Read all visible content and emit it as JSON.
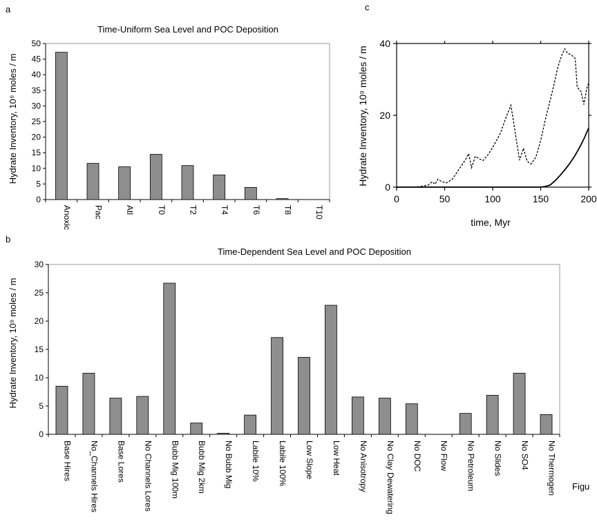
{
  "panel_letters": [
    "a",
    "b",
    "c"
  ],
  "footer_text": "Figu",
  "colors": {
    "bar_fill": "#8e8e8e",
    "bar_edge": "#000000",
    "axis": "#000000",
    "background": "#ffffff"
  },
  "chart_data": [
    {
      "panel": "a",
      "type": "bar",
      "title": "Time-Uniform Sea Level and POC Deposition",
      "xlabel": "",
      "ylabel": "Hydrate Inventory, 10⁹ moles / m",
      "ylim": [
        0,
        50
      ],
      "yticks": [
        0,
        5,
        10,
        15,
        20,
        25,
        30,
        35,
        40,
        45,
        50
      ],
      "grid": false,
      "categories": [
        "Anoxic",
        "Pac",
        "Atl",
        "T0",
        "T2",
        "T4",
        "T6",
        "T8",
        "T10"
      ],
      "values": [
        47.2,
        11.6,
        10.5,
        14.5,
        10.9,
        7.9,
        3.9,
        0.3,
        0
      ]
    },
    {
      "panel": "b",
      "type": "bar",
      "title": "Time-Dependent Sea Level and POC Deposition",
      "xlabel": "",
      "ylabel": "Hydrate Inventory, 10⁹ moles / m",
      "ylim": [
        0,
        30
      ],
      "yticks": [
        0,
        5,
        10,
        15,
        20,
        25,
        30
      ],
      "grid": false,
      "categories": [
        "Base Hires",
        "No_Channels Hires",
        "Base Lores",
        "No Channels Lores",
        "Bubb Mig 100m",
        "Bubb Mig 2km",
        "No Bubb Mig",
        "Labile 10%",
        "Labile 100%",
        "Low Slope",
        "Low Heat",
        "No Anisotropy",
        "No Clay Dewatering",
        "No DOC",
        "No Flow",
        "No Petroleum",
        "No Slides",
        "No SO4",
        "No Thermogen"
      ],
      "values": [
        8.5,
        10.8,
        6.4,
        6.7,
        26.7,
        2.0,
        0.2,
        3.4,
        17.1,
        13.6,
        22.8,
        6.6,
        6.4,
        5.4,
        0,
        3.7,
        6.9,
        10.8,
        3.5
      ]
    },
    {
      "panel": "c",
      "type": "line",
      "title": "",
      "xlabel": "time, Myr",
      "ylabel": "Hydrate Inventory, 10⁹ moles / m",
      "xlim": [
        0,
        200
      ],
      "ylim": [
        0,
        40
      ],
      "xticks": [
        0,
        50,
        100,
        150,
        200
      ],
      "yticks": [
        0,
        20,
        40
      ],
      "grid": false,
      "series": [
        {
          "style": "dashed",
          "x": [
            0,
            20,
            28,
            33,
            37,
            40,
            43,
            47,
            52,
            58,
            65,
            72,
            75,
            78,
            82,
            86,
            90,
            96,
            102,
            108,
            114,
            119,
            123,
            128,
            132,
            136,
            140,
            145,
            150,
            155,
            162,
            168,
            172,
            175,
            178,
            182,
            186,
            188,
            192,
            195,
            198,
            200
          ],
          "y": [
            0,
            0,
            0.3,
            0.6,
            1.5,
            0.8,
            2.2,
            1.5,
            1.2,
            2.2,
            5.0,
            7.8,
            9.3,
            5.4,
            8.6,
            7.9,
            7.4,
            9.3,
            12.0,
            15.0,
            19.5,
            22.8,
            16.0,
            7.5,
            10.8,
            7.2,
            6.4,
            8.3,
            13.0,
            19.0,
            26.5,
            33.5,
            36.8,
            38.5,
            37.3,
            36.8,
            35.8,
            27.8,
            26.6,
            23.0,
            27.5,
            29.0
          ]
        },
        {
          "style": "solid",
          "x": [
            0,
            150,
            155,
            160,
            165,
            170,
            175,
            180,
            185,
            190,
            195,
            200
          ],
          "y": [
            0,
            0,
            0.2,
            0.6,
            1.8,
            3.2,
            4.8,
            6.5,
            8.5,
            10.8,
            13.4,
            16.5
          ]
        }
      ]
    }
  ]
}
